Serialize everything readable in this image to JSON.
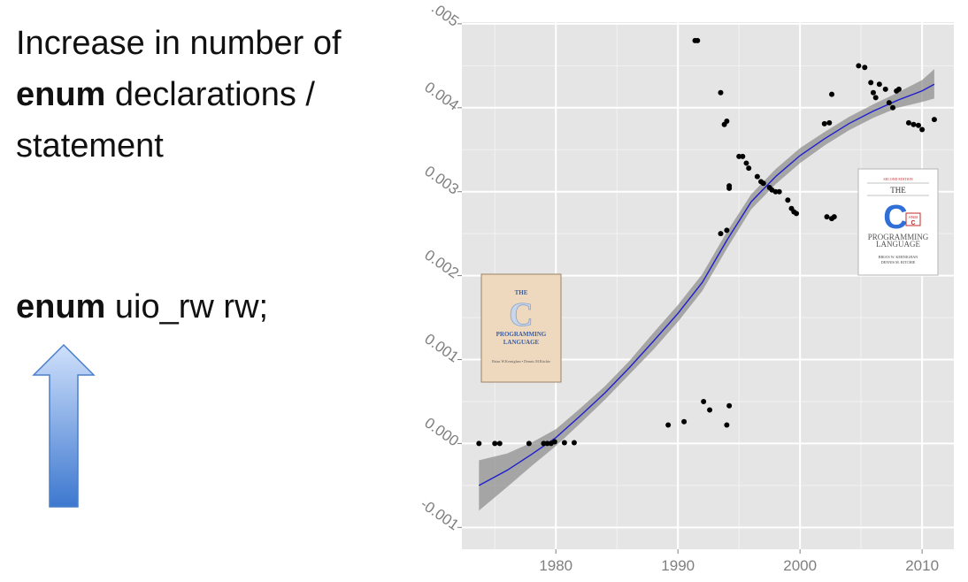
{
  "slide": {
    "heading_pre": "Increase in number of",
    "heading_keyword": "enum",
    "heading_post": "declarations / statement",
    "code_keyword": "enum",
    "code_rest": "uio_rw rw;"
  },
  "covers": {
    "first_edition": {
      "the": "THE",
      "letter": "C",
      "title_1": "PROGRAMMING",
      "title_2": "LANGUAGE",
      "authors": "Brian W.Kernighan • Dennis M.Ritchie"
    },
    "second_edition": {
      "edition": "SECOND EDITION",
      "the": "THE",
      "letter": "C",
      "ansi": "ANSI",
      "title_1": "PROGRAMMING",
      "title_2": "LANGUAGE",
      "author_1": "BRIAN W. KERNIGHAN",
      "author_2": "DENNIS M. RITCHIE"
    }
  },
  "chart_data": {
    "type": "scatter",
    "title": "",
    "xlabel": "",
    "ylabel": "",
    "xlim": [
      1972.3,
      2012.6
    ],
    "ylim": [
      -0.00126,
      0.00502
    ],
    "x_ticks": [
      1980,
      1990,
      2000,
      2010
    ],
    "x_tick_labels": [
      "1980",
      "1990",
      "2000",
      "2010"
    ],
    "y_ticks": [
      -0.001,
      0.0,
      0.001,
      0.002,
      0.003,
      0.004,
      0.005
    ],
    "y_tick_labels": [
      "-0.001",
      "0.000",
      "0.001",
      "0.002",
      "0.003",
      "0.004",
      ".005"
    ],
    "grid": true,
    "colors": {
      "panel": "#e5e5e5",
      "grid_major": "#ffffff",
      "point": "#000000",
      "smooth_line": "#1f1fcf",
      "confidence_band": "#8a8a8a"
    },
    "points": [
      [
        1973.7,
        0.0
      ],
      [
        1975.0,
        0.0
      ],
      [
        1975.4,
        0.0
      ],
      [
        1977.8,
        0.0
      ],
      [
        1979.0,
        0.0
      ],
      [
        1979.3,
        0.0
      ],
      [
        1979.6,
        0.0
      ],
      [
        1979.9,
        2e-05
      ],
      [
        1980.7,
        1e-05
      ],
      [
        1981.5,
        1e-05
      ],
      [
        1989.2,
        0.00022
      ],
      [
        1990.5,
        0.00026
      ],
      [
        1992.1,
        0.0005
      ],
      [
        1992.6,
        0.0004
      ],
      [
        1994.0,
        0.00022
      ],
      [
        1994.2,
        0.00045
      ],
      [
        1991.4,
        0.0048
      ],
      [
        1991.6,
        0.0048
      ],
      [
        1993.5,
        0.00418
      ],
      [
        1993.8,
        0.0038
      ],
      [
        1994.0,
        0.00384
      ],
      [
        1994.2,
        0.00304
      ],
      [
        1994.2,
        0.00307
      ],
      [
        1993.5,
        0.0025
      ],
      [
        1994.0,
        0.00254
      ],
      [
        1995.0,
        0.00342
      ],
      [
        1995.3,
        0.00342
      ],
      [
        1995.6,
        0.00334
      ],
      [
        1995.8,
        0.00328
      ],
      [
        1996.5,
        0.00318
      ],
      [
        1996.8,
        0.00312
      ],
      [
        1997.0,
        0.0031
      ],
      [
        1997.5,
        0.00305
      ],
      [
        1997.7,
        0.00302
      ],
      [
        1998.0,
        0.003
      ],
      [
        1998.3,
        0.003
      ],
      [
        1999.0,
        0.0029
      ],
      [
        1999.3,
        0.0028
      ],
      [
        1999.5,
        0.00276
      ],
      [
        1999.7,
        0.00274
      ],
      [
        2002.0,
        0.00381
      ],
      [
        2002.4,
        0.00382
      ],
      [
        2002.2,
        0.0027
      ],
      [
        2002.6,
        0.00268
      ],
      [
        2002.8,
        0.0027
      ],
      [
        2002.6,
        0.00416
      ],
      [
        2004.8,
        0.0045
      ],
      [
        2005.3,
        0.00448
      ],
      [
        2005.8,
        0.0043
      ],
      [
        2006.0,
        0.00418
      ],
      [
        2006.2,
        0.00412
      ],
      [
        2006.5,
        0.00428
      ],
      [
        2007.0,
        0.00422
      ],
      [
        2007.3,
        0.00406
      ],
      [
        2007.6,
        0.004
      ],
      [
        2007.9,
        0.0042
      ],
      [
        2008.1,
        0.00422
      ],
      [
        2008.9,
        0.00382
      ],
      [
        2009.3,
        0.0038
      ],
      [
        2009.7,
        0.00379
      ],
      [
        2010.0,
        0.00374
      ],
      [
        2011.0,
        0.00386
      ]
    ],
    "smooth": {
      "x": [
        1973.7,
        1976,
        1978,
        1980,
        1982,
        1984,
        1986,
        1988,
        1990,
        1992,
        1994,
        1996,
        1998,
        2000,
        2002,
        2004,
        2006,
        2008,
        2010,
        2011
      ],
      "y": [
        -0.0005,
        -0.00032,
        -0.00013,
        7e-05,
        0.00033,
        0.0006,
        0.0009,
        0.00122,
        0.00155,
        0.00192,
        0.00242,
        0.00288,
        0.00318,
        0.00343,
        0.00363,
        0.00381,
        0.00396,
        0.00409,
        0.0042,
        0.00428
      ],
      "lower": [
        -0.0008,
        -0.00052,
        -0.00027,
        -3e-05,
        0.00024,
        0.00052,
        0.00082,
        0.00112,
        0.00145,
        0.00182,
        0.00232,
        0.00279,
        0.00309,
        0.00334,
        0.00355,
        0.00373,
        0.00388,
        0.004,
        0.00407,
        0.00411
      ],
      "upper": [
        -0.0002,
        -0.00012,
        1e-05,
        0.00017,
        0.00042,
        0.00068,
        0.00098,
        0.00132,
        0.00165,
        0.00202,
        0.00252,
        0.00297,
        0.00327,
        0.00352,
        0.00371,
        0.00389,
        0.00404,
        0.00418,
        0.00433,
        0.00446
      ]
    }
  }
}
